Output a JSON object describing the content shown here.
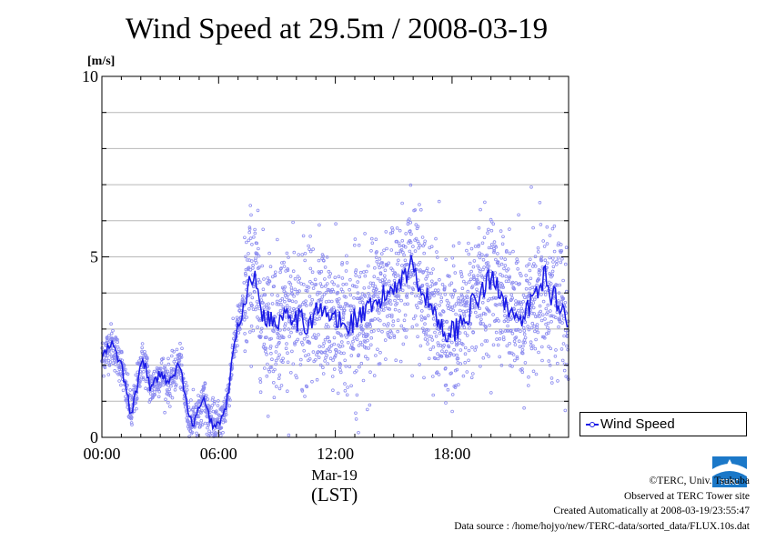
{
  "chart_data": {
    "type": "scatter",
    "title": "Wind Speed at 29.5m / 2008-03-19",
    "ylabel": "[m/s]",
    "xlabel": "Mar-19",
    "xlabel_sub": "(LST)",
    "xticks": [
      "00:00",
      "06:00",
      "12:00",
      "18:00"
    ],
    "yticks": [
      "0",
      "5",
      "10"
    ],
    "xlim": [
      0,
      23.99
    ],
    "ylim": [
      0,
      10
    ],
    "grid": true,
    "legend_position": "bottom-right",
    "series": [
      {
        "name": "Wind Speed",
        "color": "#1a1ae6",
        "marker_color": "#8c8cf0",
        "x": [
          0.0,
          0.5,
          1.0,
          1.5,
          1.75,
          2.0,
          2.25,
          2.5,
          3.0,
          3.5,
          4.0,
          4.25,
          4.5,
          4.75,
          5.0,
          5.25,
          5.5,
          5.75,
          6.0,
          6.25,
          6.5,
          6.75,
          7.0,
          7.25,
          7.5,
          7.75,
          8.0,
          8.25,
          8.5,
          9.0,
          9.5,
          10.0,
          10.5,
          11.0,
          11.5,
          12.0,
          12.5,
          13.0,
          13.5,
          14.0,
          14.5,
          15.0,
          15.5,
          16.0,
          16.5,
          17.0,
          17.5,
          18.0,
          18.5,
          19.0,
          19.5,
          20.0,
          20.5,
          21.0,
          21.5,
          22.0,
          22.5,
          22.75,
          23.0,
          23.5,
          23.99
        ],
        "y": [
          2.2,
          2.6,
          2.0,
          0.6,
          1.2,
          2.1,
          2.0,
          1.3,
          1.8,
          1.5,
          2.1,
          1.2,
          0.5,
          0.4,
          0.8,
          1.0,
          0.6,
          0.3,
          0.4,
          0.6,
          1.2,
          2.4,
          3.1,
          3.5,
          4.2,
          4.6,
          4.0,
          3.5,
          3.3,
          3.2,
          3.6,
          3.3,
          3.1,
          3.5,
          3.4,
          3.3,
          3.0,
          3.3,
          3.4,
          3.6,
          3.9,
          4.2,
          4.5,
          4.8,
          4.0,
          3.6,
          3.0,
          2.9,
          3.2,
          3.6,
          4.0,
          4.4,
          4.1,
          3.5,
          3.0,
          3.7,
          4.1,
          4.6,
          4.0,
          3.8,
          3.0
        ]
      }
    ]
  },
  "legend": {
    "label": "Wind Speed"
  },
  "credits": {
    "line1": "©TERC, Univ. Tsukuba",
    "line2": "Observed at TERC Tower site",
    "line3": "Created Automatically at 2008-03-19/23:55:47",
    "line4": "Data source : /home/hojyo/new/TERC-data/sorted_data/FLUX.10s.dat"
  },
  "logo_label": "TERC"
}
